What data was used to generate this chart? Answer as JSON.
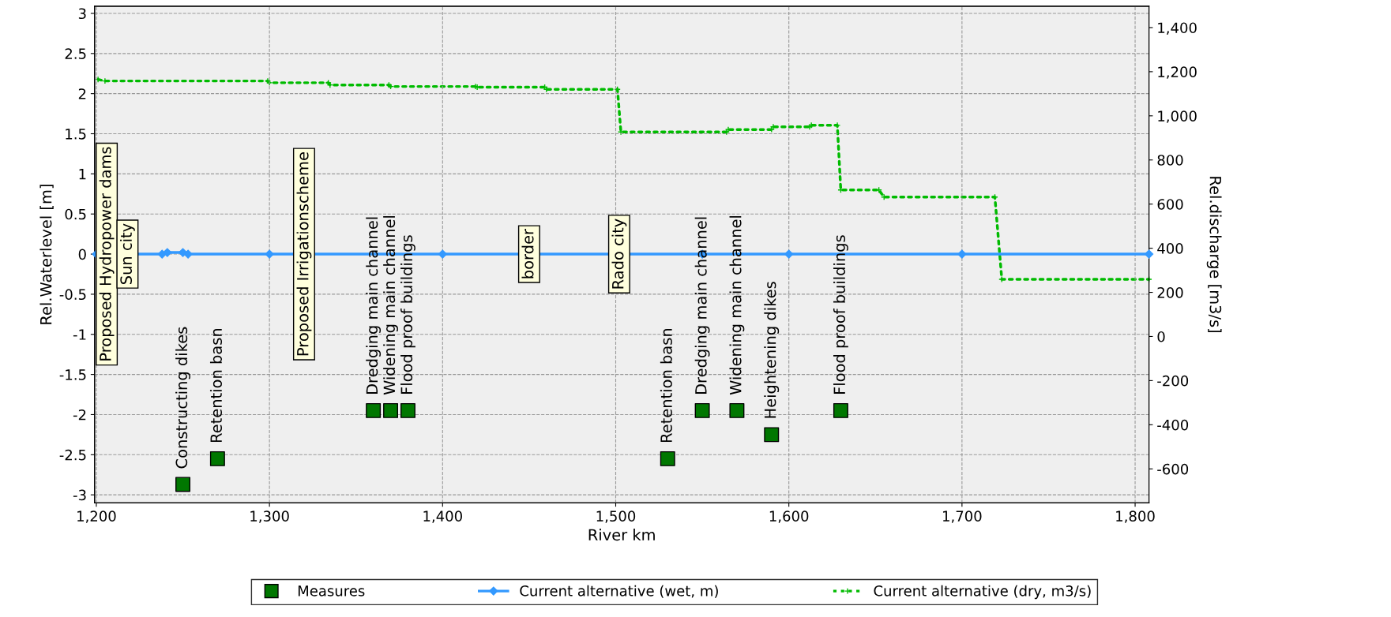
{
  "chart_data": {
    "type": "line",
    "xlabel": "River km",
    "ylabel": "Rel.Waterlevel [m]",
    "y2label": "Rel.discharge [m3/s]",
    "xlim": [
      1199,
      1808
    ],
    "ylim": [
      -3.1,
      3.09
    ],
    "y2lim": [
      -754,
      1497
    ],
    "xticks": [
      {
        "value": 1200,
        "label": "1,200"
      },
      {
        "value": 1300,
        "label": "1,300"
      },
      {
        "value": 1400,
        "label": "1,400"
      },
      {
        "value": 1500,
        "label": "1,500"
      },
      {
        "value": 1600,
        "label": "1,600"
      },
      {
        "value": 1700,
        "label": "1,700"
      },
      {
        "value": 1800,
        "label": "1,800"
      }
    ],
    "yticks": [
      -3,
      -2.5,
      -2,
      -1.5,
      -1,
      -0.5,
      0,
      0.5,
      1,
      1.5,
      2,
      2.5,
      3
    ],
    "y2ticks": [
      {
        "value": -600,
        "label": "-600"
      },
      {
        "value": -400,
        "label": "-400"
      },
      {
        "value": -200,
        "label": "-200"
      },
      0,
      200,
      400,
      600,
      800,
      {
        "value": 1000,
        "label": "1,000"
      },
      {
        "value": 1200,
        "label": "1,200"
      },
      {
        "value": 1400,
        "label": "1,400"
      }
    ],
    "grid": true,
    "legend": "bottom",
    "series": [
      {
        "name": "Measures",
        "type": "scatter",
        "color": "#007700",
        "marker": "square",
        "x": [
          1250,
          1270,
          1360,
          1370,
          1380,
          1530,
          1550,
          1570,
          1590,
          1630
        ],
        "values": [
          -2.87,
          -2.55,
          -1.95,
          -1.95,
          -1.95,
          -2.55,
          -1.95,
          -1.95,
          -2.25,
          -1.95
        ]
      },
      {
        "name": "Current alternative (wet, m)",
        "color": "#3399ff",
        "marker": "diamond",
        "line_style": "solid",
        "x": [
          1200,
          1238,
          1241,
          1250,
          1253,
          1300,
          1400,
          1550,
          1600,
          1700,
          1808
        ],
        "values": [
          0,
          0,
          0.02,
          0.02,
          0,
          0,
          0,
          0,
          0,
          0,
          0
        ]
      },
      {
        "name": "Current alternative (dry, m3/s)",
        "axis": "y2",
        "color": "#00bb00",
        "marker": "cross",
        "line_style": "dotted",
        "x": [
          1201,
          1205,
          1299,
          1300,
          1334,
          1335,
          1369,
          1370,
          1419,
          1420,
          1459,
          1460,
          1501,
          1503,
          1564,
          1565,
          1590,
          1591,
          1612,
          1613,
          1628,
          1630,
          1652,
          1655,
          1719,
          1723,
          1808
        ],
        "values": [
          1165,
          1158,
          1158,
          1150,
          1150,
          1140,
          1140,
          1133,
          1133,
          1130,
          1130,
          1120,
          1120,
          927,
          927,
          938,
          938,
          950,
          950,
          957,
          957,
          664,
          664,
          632,
          632,
          259,
          259
        ]
      }
    ],
    "annotations": [
      {
        "text": "Proposed Hydropower dams",
        "x": 1206,
        "y": 0
      },
      {
        "text": "Sun city",
        "x": 1218,
        "y": 0
      },
      {
        "text": "Proposed Irrigationscheme",
        "x": 1320,
        "y": 0
      },
      {
        "text": "border",
        "x": 1450,
        "y": 0
      },
      {
        "text": "Rado city",
        "x": 1502,
        "y": 0
      },
      {
        "text": "Constructing dikes",
        "x": 1250,
        "y": -2.87
      },
      {
        "text": "Retention basn",
        "x": 1270,
        "y": -2.55
      },
      {
        "text": "Dredging main channel",
        "x": 1360,
        "y": -1.95
      },
      {
        "text": "Widening main channel",
        "x": 1370,
        "y": -1.95
      },
      {
        "text": "Flood proof buildings",
        "x": 1380,
        "y": -1.95
      },
      {
        "text": "Retention basn",
        "x": 1530,
        "y": -2.55
      },
      {
        "text": "Dredging main channel",
        "x": 1550,
        "y": -1.95
      },
      {
        "text": "Widening main channel",
        "x": 1570,
        "y": -1.95
      },
      {
        "text": "Heightening dikes",
        "x": 1590,
        "y": -2.25
      },
      {
        "text": "Flood proof buildings",
        "x": 1630,
        "y": -1.95
      }
    ]
  }
}
